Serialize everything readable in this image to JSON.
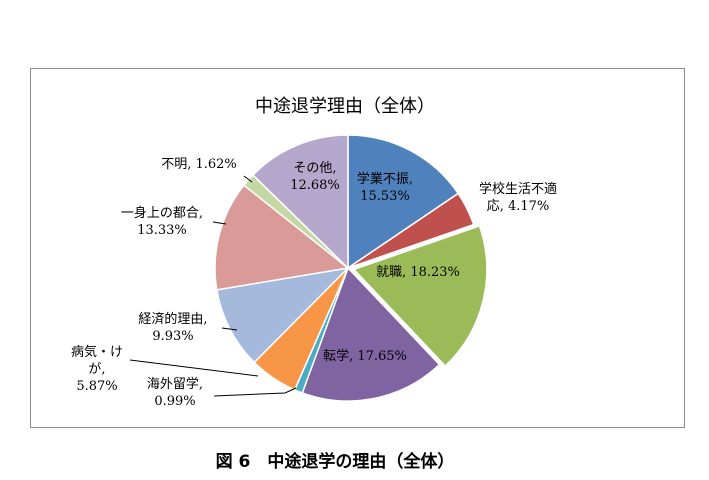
{
  "chart_data": {
    "type": "pie",
    "title": "中途退学理由（全体）",
    "start_angle_deg": 0,
    "direction": "clockwise",
    "slices": [
      {
        "name": "学業不振",
        "value": 15.53,
        "label": "15.53%",
        "color": "#4f81bd"
      },
      {
        "name": "学校生活不適応",
        "value": 4.17,
        "label": "4.17%",
        "color": "#c0504d"
      },
      {
        "name": "就職",
        "value": 18.23,
        "label": "18.23%",
        "color": "#9bbb59"
      },
      {
        "name": "転学",
        "value": 17.65,
        "label": "17.65%",
        "color": "#8064a2"
      },
      {
        "name": "海外留学",
        "value": 0.99,
        "label": "0.99%",
        "color": "#4bacc6"
      },
      {
        "name": "病気・けが",
        "value": 5.87,
        "label": "5.87%",
        "color": "#f79646"
      },
      {
        "name": "経済的理由",
        "value": 9.93,
        "label": "9.93%",
        "color": "#a5b9dc"
      },
      {
        "name": "一身上の都合",
        "value": 13.33,
        "label": "13.33%",
        "color": "#d99a98"
      },
      {
        "name": "不明",
        "value": 1.62,
        "label": "1.62%",
        "color": "#c4d8a4"
      },
      {
        "name": "その他",
        "value": 12.68,
        "label": "12.68%",
        "color": "#b6a8cc"
      }
    ],
    "legend": "none"
  },
  "labels": {
    "s0": [
      "学業不振,",
      "15.53%"
    ],
    "s1": [
      "学校生活不適",
      "応, 4.17%"
    ],
    "s2": [
      "就職, 18.23%"
    ],
    "s3": [
      "転学, 17.65%"
    ],
    "s4": [
      "海外留学,",
      "0.99%"
    ],
    "s5": [
      "病気・け",
      "が,",
      "5.87%"
    ],
    "s6": [
      "経済的理由,",
      "9.93%"
    ],
    "s7": [
      "一身上の都合,",
      "13.33%"
    ],
    "s8": [
      "不明, 1.62%"
    ],
    "s9": [
      "その他,",
      "12.68%"
    ]
  },
  "caption": "図 6　中途退学の理由（全体）"
}
